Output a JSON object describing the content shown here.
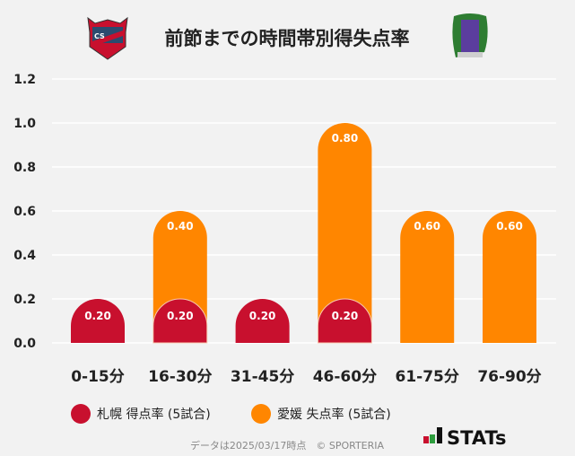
{
  "chart_data": {
    "type": "bar",
    "stacked": true,
    "title": "前節までの時間帯別得失点率",
    "categories": [
      "0-15分",
      "16-30分",
      "31-45分",
      "46-60分",
      "61-75分",
      "76-90分"
    ],
    "series": [
      {
        "name": "札幌 得点率 (5試合)",
        "color": "#c8102e",
        "values": [
          0.2,
          0.2,
          0.2,
          0.2,
          0,
          0
        ]
      },
      {
        "name": "愛媛 失点率 (5試合)",
        "color": "#ff8600",
        "values": [
          0,
          0.4,
          0,
          0.8,
          0.6,
          0.6
        ]
      }
    ],
    "ylim": [
      0,
      1.2
    ],
    "yticks": [
      "0.0",
      "0.2",
      "0.4",
      "0.6",
      "0.8",
      "1.0",
      "1.2"
    ],
    "grid": true,
    "legend": "bottom-left"
  },
  "logos": {
    "left": "Consadole Sapporo crest",
    "right": "Ehime FC crest"
  },
  "footer": {
    "note": "データは2025/03/17時点　© SPORTERIA",
    "brand": "STATs"
  }
}
